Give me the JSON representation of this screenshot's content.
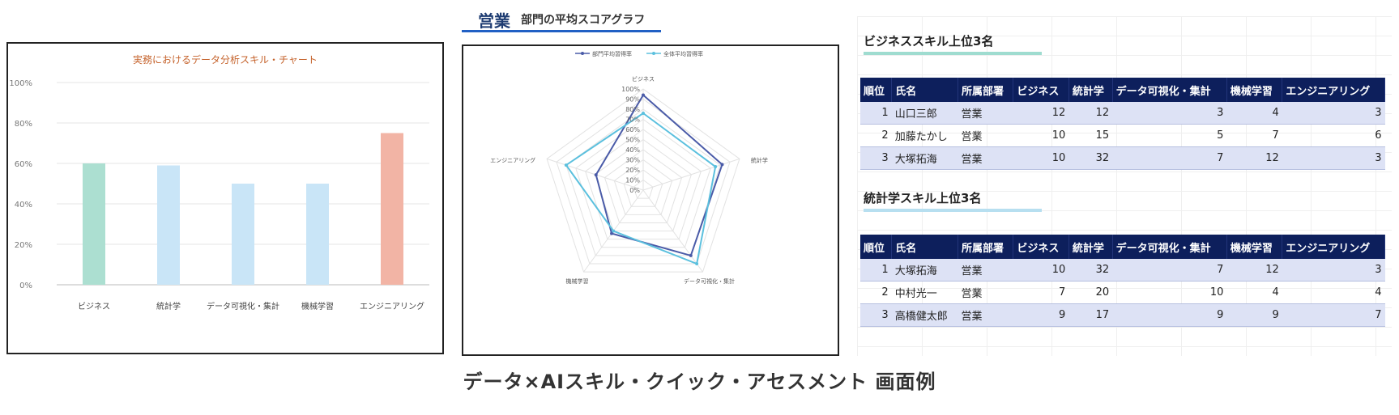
{
  "caption": "データ×AIスキル・クイック・アセスメント 画面例",
  "bar_chart": {
    "chart_data": {
      "type": "bar",
      "title": "実務におけるデータ分析スキル・チャート",
      "categories": [
        "ビジネス",
        "統計学",
        "データ可視化・集計",
        "機械学習",
        "エンジニアリング"
      ],
      "values": [
        60,
        59,
        50,
        50,
        75
      ],
      "colors": [
        "#acdfd1",
        "#c9e5f7",
        "#c9e5f7",
        "#c9e5f7",
        "#f2b4a5"
      ],
      "ylim": [
        0,
        100
      ],
      "yticks": [
        "0%",
        "20%",
        "40%",
        "60%",
        "80%",
        "100%"
      ],
      "grid": true,
      "xlabel": "",
      "ylabel": ""
    }
  },
  "radar_chart": {
    "section": "営業",
    "subtitle": "部門の平均スコアグラフ",
    "chart_data": {
      "type": "radar",
      "axes": [
        "ビジネス",
        "統計学",
        "データ可視化・集計",
        "機械学習",
        "エンジニアリング"
      ],
      "rticks": [
        "0%",
        "10%",
        "20%",
        "30%",
        "40%",
        "50%",
        "60%",
        "70%",
        "80%",
        "90%",
        "100%"
      ],
      "series": [
        {
          "name": "部門平均習得率",
          "values": [
            94,
            82,
            80,
            53,
            49
          ],
          "color": "#4a5ba8"
        },
        {
          "name": "全体平均習得率",
          "values": [
            76,
            75,
            90,
            50,
            80
          ],
          "color": "#5bc0de"
        }
      ],
      "legend": "top"
    }
  },
  "tables": [
    {
      "title": "ビジネススキル上位3名",
      "line_color": "#9fdcd0",
      "headers": [
        "順位",
        "氏名",
        "所属部署",
        "ビジネス",
        "統計学",
        "データ可視化・集計",
        "機械学習",
        "エンジニアリング"
      ],
      "rows": [
        [
          "1",
          "山口三郎",
          "営業",
          "12",
          "12",
          "3",
          "4",
          "3"
        ],
        [
          "2",
          "加藤たかし",
          "営業",
          "10",
          "15",
          "5",
          "7",
          "6"
        ],
        [
          "3",
          "大塚拓海",
          "営業",
          "10",
          "32",
          "7",
          "12",
          "3"
        ]
      ]
    },
    {
      "title": "統計学スキル上位3名",
      "line_color": "#b7dff0",
      "headers": [
        "順位",
        "氏名",
        "所属部署",
        "ビジネス",
        "統計学",
        "データ可視化・集計",
        "機械学習",
        "エンジニアリング"
      ],
      "rows": [
        [
          "1",
          "大塚拓海",
          "営業",
          "10",
          "32",
          "7",
          "12",
          "3"
        ],
        [
          "2",
          "中村光一",
          "営業",
          "7",
          "20",
          "10",
          "4",
          "4"
        ],
        [
          "3",
          "高橋健太郎",
          "営業",
          "9",
          "17",
          "9",
          "9",
          "7"
        ]
      ]
    }
  ]
}
